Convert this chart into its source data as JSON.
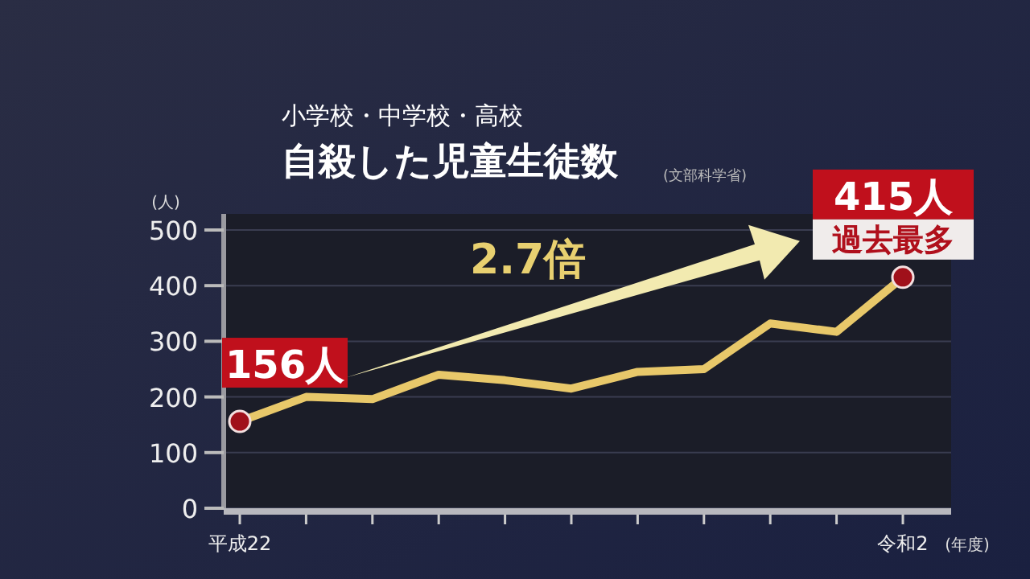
{
  "chart_data": {
    "type": "line",
    "title": "自殺した児童生徒数",
    "subtitle": "小学校・中学校・高校",
    "ylabel": "(人)",
    "xlabel": "(年度)",
    "categories": [
      "平成22",
      null,
      null,
      null,
      null,
      null,
      null,
      null,
      null,
      null,
      "令和2"
    ],
    "series": [
      {
        "color": "#e8c86a",
        "values": [
          156,
          200,
          196,
          240,
          230,
          215,
          245,
          250,
          332,
          317,
          415
        ],
        "value_labels": [
          "156人",
          null,
          null,
          null,
          null,
          null,
          null,
          null,
          null,
          null,
          "415人"
        ]
      }
    ],
    "ylim": [
      0,
      500
    ],
    "yticks": [
      0,
      100,
      200,
      300,
      400,
      500
    ],
    "grid": "y",
    "annotations": [
      "2.7倍",
      "過去最多",
      "(文部科学省)"
    ]
  }
}
